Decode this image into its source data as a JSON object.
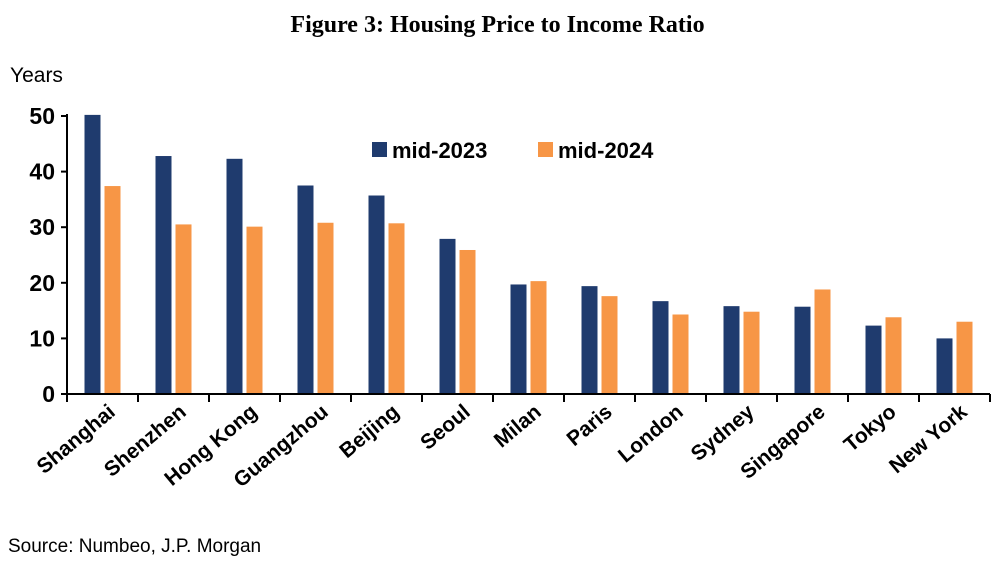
{
  "chart_data": {
    "type": "bar",
    "title": "Figure 3: Housing Price to Income Ratio",
    "ylabel": "Years",
    "xlabel": "",
    "ylim": [
      0,
      50
    ],
    "yticks": [
      "0",
      "10",
      "20",
      "30",
      "40",
      "50"
    ],
    "grid": false,
    "legend_position": "top-center",
    "categories": [
      "Shanghai",
      "Shenzhen",
      "Hong Kong",
      "Guangzhou",
      "Beijing",
      "Seoul",
      "Milan",
      "Paris",
      "London",
      "Sydney",
      "Singapore",
      "Tokyo",
      "New York"
    ],
    "series": [
      {
        "name": "mid-2023",
        "color": "#1F3B6E",
        "values": [
          50.2,
          42.8,
          42.3,
          37.5,
          35.7,
          27.9,
          19.7,
          19.4,
          16.7,
          15.8,
          15.7,
          12.3,
          10.0
        ]
      },
      {
        "name": "mid-2024",
        "color": "#F79646",
        "values": [
          37.4,
          30.5,
          30.1,
          30.8,
          30.7,
          25.9,
          20.3,
          17.6,
          14.3,
          14.8,
          18.8,
          13.8,
          13.0
        ]
      }
    ]
  },
  "source": "Source: Numbeo, J.P. Morgan"
}
